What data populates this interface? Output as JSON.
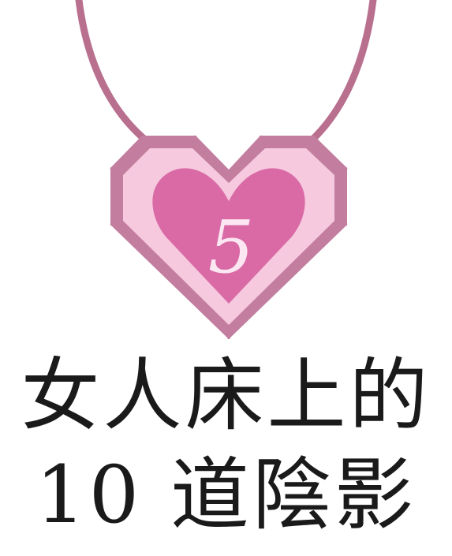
{
  "pendant": {
    "number": "5",
    "colors": {
      "chain": "#b9708f",
      "outer": "#c27d9f",
      "inner": "#d96aa6",
      "highlight": "#f6c9de",
      "number": "#fbe6f1"
    }
  },
  "title": {
    "line1": "女人床上的",
    "line2": "10 道陰影"
  }
}
